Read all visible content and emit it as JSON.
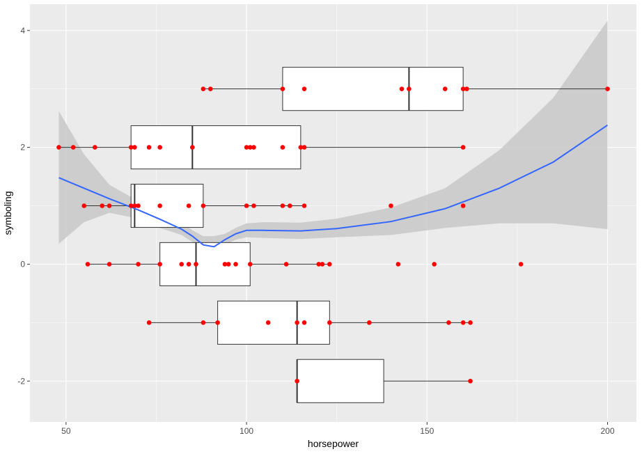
{
  "chart_data": {
    "type": "boxplot-scatter",
    "title": "",
    "xlabel": "horsepower",
    "ylabel": "symboling",
    "xlim": [
      40,
      208
    ],
    "ylim": [
      -2.7,
      4.45
    ],
    "x_ticks": [
      50,
      100,
      150,
      200
    ],
    "y_ticks": [
      -2,
      0,
      2,
      4
    ],
    "grid": true,
    "colors": {
      "panel": "#ebebeb",
      "grid_major": "#ffffff",
      "point": "#ff0000",
      "smooth_line": "#3366ff",
      "ribbon": "#c8c8c8",
      "box_fill": "#ffffff",
      "box_stroke": "#333333"
    },
    "boxes": [
      {
        "y": 3,
        "min": 88,
        "q1": 110,
        "median": 145,
        "q3": 160,
        "max": 200
      },
      {
        "y": 2,
        "min": 48,
        "q1": 68,
        "median": 85,
        "q3": 115,
        "max": 160
      },
      {
        "y": 1,
        "min": 55,
        "q1": 68,
        "median": 69,
        "q3": 88,
        "max": 116
      },
      {
        "y": 0,
        "min": 56,
        "q1": 76,
        "median": 86,
        "q3": 101,
        "max": 123
      },
      {
        "y": -1,
        "min": 73,
        "q1": 92,
        "median": 114,
        "q3": 123,
        "max": 162
      },
      {
        "y": -2,
        "min": 114,
        "q1": 114,
        "median": 114,
        "q3": 138,
        "max": 162
      }
    ],
    "points": [
      [
        88,
        3
      ],
      [
        90,
        3
      ],
      [
        110,
        3
      ],
      [
        116,
        3
      ],
      [
        143,
        3
      ],
      [
        145,
        3
      ],
      [
        155,
        3
      ],
      [
        160,
        3
      ],
      [
        161,
        3
      ],
      [
        200,
        3
      ],
      [
        48,
        2
      ],
      [
        52,
        2
      ],
      [
        58,
        2
      ],
      [
        68,
        2
      ],
      [
        69,
        2
      ],
      [
        73,
        2
      ],
      [
        76,
        2
      ],
      [
        85,
        2
      ],
      [
        100,
        2
      ],
      [
        101,
        2
      ],
      [
        102,
        2
      ],
      [
        110,
        2
      ],
      [
        115,
        2
      ],
      [
        116,
        2
      ],
      [
        160,
        2
      ],
      [
        55,
        1
      ],
      [
        60,
        1
      ],
      [
        62,
        1
      ],
      [
        68,
        1
      ],
      [
        69,
        1
      ],
      [
        70,
        1
      ],
      [
        76,
        1
      ],
      [
        84,
        1
      ],
      [
        88,
        1
      ],
      [
        100,
        1
      ],
      [
        102,
        1
      ],
      [
        110,
        1
      ],
      [
        112,
        1
      ],
      [
        116,
        1
      ],
      [
        140,
        1
      ],
      [
        160,
        1
      ],
      [
        56,
        0
      ],
      [
        62,
        0
      ],
      [
        70,
        0
      ],
      [
        76,
        0
      ],
      [
        82,
        0
      ],
      [
        84,
        0
      ],
      [
        86,
        0
      ],
      [
        94,
        0
      ],
      [
        95,
        0
      ],
      [
        97,
        0
      ],
      [
        101,
        0
      ],
      [
        111,
        0
      ],
      [
        120,
        0
      ],
      [
        121,
        0
      ],
      [
        123,
        0
      ],
      [
        142,
        0
      ],
      [
        152,
        0
      ],
      [
        176,
        0
      ],
      [
        73,
        -1
      ],
      [
        88,
        -1
      ],
      [
        92,
        -1
      ],
      [
        106,
        -1
      ],
      [
        114,
        -1
      ],
      [
        116,
        -1
      ],
      [
        123,
        -1
      ],
      [
        134,
        -1
      ],
      [
        156,
        -1
      ],
      [
        160,
        -1
      ],
      [
        162,
        -1
      ],
      [
        114,
        -2
      ],
      [
        162,
        -2
      ]
    ],
    "smooth": {
      "x": [
        48,
        55,
        62,
        70,
        76,
        82,
        85,
        88,
        91,
        94,
        97,
        100,
        105,
        115,
        125,
        140,
        155,
        170,
        185,
        200
      ],
      "y": [
        1.48,
        1.3,
        1.12,
        0.93,
        0.77,
        0.6,
        0.48,
        0.33,
        0.3,
        0.42,
        0.52,
        0.58,
        0.58,
        0.57,
        0.61,
        0.73,
        0.95,
        1.3,
        1.75,
        2.38
      ],
      "lower": [
        0.35,
        0.72,
        0.88,
        0.78,
        0.62,
        0.5,
        0.38,
        0.18,
        0.15,
        0.33,
        0.42,
        0.46,
        0.45,
        0.43,
        0.46,
        0.5,
        0.62,
        0.7,
        0.7,
        0.6
      ],
      "upper": [
        2.62,
        1.88,
        1.36,
        1.08,
        0.92,
        0.72,
        0.58,
        0.48,
        0.48,
        0.52,
        0.62,
        0.7,
        0.72,
        0.71,
        0.78,
        0.97,
        1.3,
        1.95,
        2.85,
        4.17
      ]
    }
  }
}
